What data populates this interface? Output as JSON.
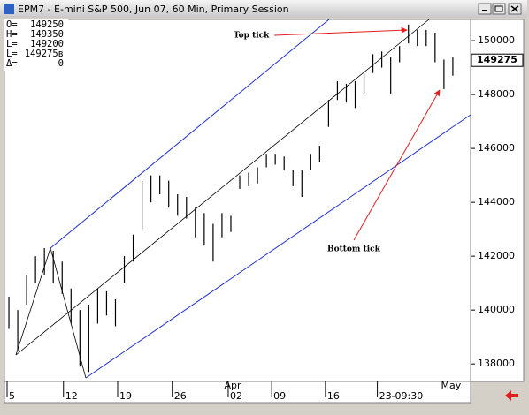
{
  "window_title": "EPM7 - E-mini S&P 500, Jun 07, 60 Min, Primary Session",
  "info": [
    {
      "label": "O=",
      "value": "149250"
    },
    {
      "label": "H=",
      "value": "149350"
    },
    {
      "label": "L=",
      "value": "149200"
    },
    {
      "label": "L=",
      "value": "149275в"
    },
    {
      "label": "Δ=",
      "value": "0"
    }
  ],
  "chart_data": {
    "type": "ohlc",
    "color": "#000000",
    "x": [
      1,
      3,
      5,
      7,
      9,
      11,
      13,
      15,
      17,
      19,
      21,
      23,
      25,
      27,
      29,
      31,
      33,
      35,
      37,
      39,
      41,
      43,
      45,
      47,
      49,
      51,
      53,
      55,
      57,
      59,
      61,
      63,
      65,
      67,
      69,
      71,
      73,
      75,
      77,
      79,
      81,
      83,
      85,
      87,
      89,
      91,
      93,
      95,
      97,
      99,
      101
    ],
    "high": [
      140500,
      140000,
      141300,
      142000,
      142300,
      142200,
      141800,
      140800,
      140000,
      140200,
      140800,
      140700,
      140400,
      142000,
      142800,
      144800,
      145000,
      145000,
      144800,
      144300,
      144200,
      143800,
      143600,
      143200,
      143600,
      143500,
      145000,
      145100,
      145300,
      145800,
      145800,
      145700,
      145200,
      145200,
      145800,
      146100,
      147800,
      148500,
      148400,
      148500,
      148800,
      149500,
      149600,
      149400,
      149800,
      150600,
      150400,
      150400,
      150300,
      149300,
      149400
    ],
    "low": [
      139300,
      138500,
      140200,
      141000,
      141300,
      141000,
      140600,
      139500,
      137900,
      137700,
      139500,
      139800,
      139400,
      141000,
      141800,
      143000,
      144000,
      144300,
      143800,
      143500,
      143400,
      142700,
      142400,
      141800,
      142700,
      142900,
      144500,
      144600,
      144700,
      145300,
      145400,
      145200,
      144600,
      144200,
      145200,
      145500,
      146800,
      147800,
      147700,
      147500,
      148000,
      148800,
      149000,
      148000,
      149200,
      149900,
      149800,
      149800,
      149200,
      148200,
      148700
    ],
    "xlim": [
      0,
      105
    ],
    "ylim": [
      137350,
      150790
    ],
    "yticks": [
      138000,
      140000,
      142000,
      144000,
      146000,
      148000,
      150000
    ],
    "xticks": [
      {
        "value": 0.6,
        "label": "5"
      },
      {
        "value": 13.3,
        "label": "12"
      },
      {
        "value": 25.5,
        "label": "19"
      },
      {
        "value": 37.8,
        "label": "26"
      },
      {
        "value": 50.4,
        "label": "02"
      },
      {
        "value": 60.2,
        "label": "09"
      },
      {
        "value": 72.3,
        "label": "16"
      },
      {
        "value": 84,
        "label": "23-09:30"
      }
    ],
    "month_labels": [
      {
        "value": 51.4,
        "label": "Apr"
      },
      {
        "value": 100.6,
        "label": "May"
      }
    ],
    "last_price": 149275,
    "annotations": [
      "Top tick",
      "Bottom tick"
    ],
    "grid": false
  }
}
